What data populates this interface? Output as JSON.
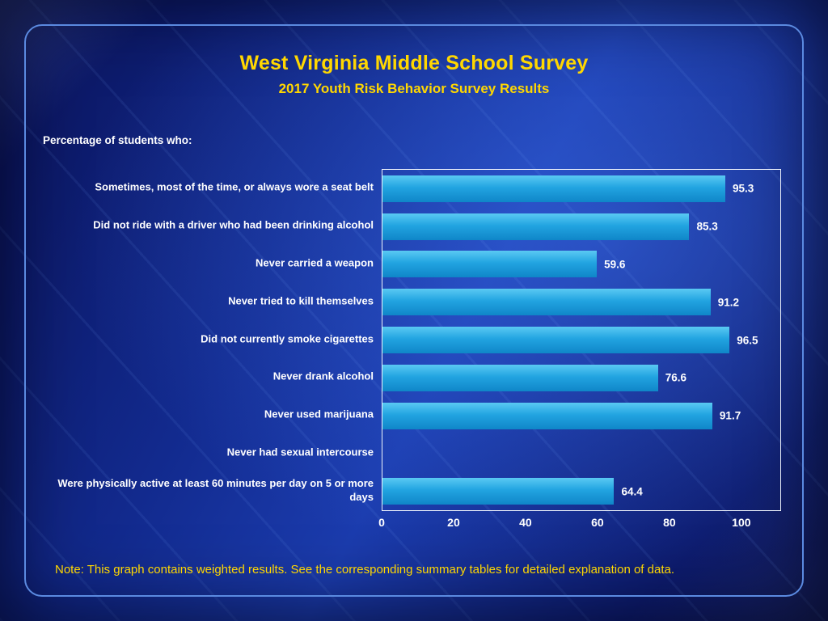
{
  "slide": {
    "title": "West Virginia Middle School Survey",
    "subtitle": "2017 Youth Risk Behavior Survey Results",
    "left_heading": "Percentage of students who:",
    "note": "Note: This graph contains weighted results. See the corresponding summary tables for detailed explanation of data."
  },
  "colors": {
    "title_yellow": "#ffd700",
    "text_white": "#ffffff",
    "bar_top": "#5ac9f3",
    "bar_mid": "#22a4e1",
    "bar_bottom": "#0f86c8",
    "frame_border": "#5b8ae0",
    "background_deep": "#0a1258",
    "background_bright": "#1b3cae"
  },
  "chart_data": {
    "type": "bar",
    "orientation": "horizontal",
    "title": "",
    "xlabel": "",
    "ylabel": "Percentage of students who:",
    "categories": [
      "Sometimes, most of the time, or always wore a seat belt",
      "Did not ride with a driver who had been drinking alcohol",
      "Never carried a weapon",
      "Never tried to kill themselves",
      "Did not currently smoke cigarettes",
      "Never drank alcohol",
      "Never used marijuana",
      "Never had sexual intercourse",
      "Were physically active at least 60 minutes per day on 5 or more days"
    ],
    "values": [
      95.3,
      85.3,
      59.6,
      91.2,
      96.5,
      76.6,
      91.7,
      null,
      64.4
    ],
    "x_ticks": [
      0,
      20,
      40,
      60,
      80,
      100
    ],
    "xlim": [
      0,
      110.6
    ],
    "grid": false,
    "legend": false
  }
}
